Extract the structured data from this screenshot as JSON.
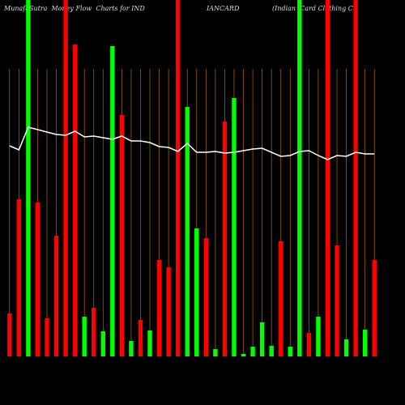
{
  "chart_data": {
    "type": "bar",
    "title": "MunafaSutra  Money Flow  Charts for IND                              IANCARD                (Indian  Card Clothing C",
    "categories": [
      null,
      null,
      null,
      null,
      null,
      null,
      null,
      null,
      null,
      null,
      null,
      null,
      null,
      null,
      null,
      null,
      null,
      null,
      null,
      null,
      null,
      null,
      null,
      null,
      null,
      null,
      null,
      null,
      null,
      null,
      null,
      null,
      null,
      null,
      null,
      null,
      null,
      null,
      null,
      null
    ],
    "values": [
      53,
      194,
      440,
      190,
      47,
      149,
      440,
      385,
      49,
      60,
      31,
      383,
      298,
      19,
      45,
      32,
      119,
      110,
      440,
      308,
      158,
      146,
      9,
      290,
      319,
      3,
      12,
      42,
      13,
      142,
      12,
      440,
      29,
      49,
      440,
      137,
      21,
      440,
      33,
      119
    ],
    "colors": [
      "#ff0000",
      "#ff0000",
      "#00ff00",
      "#ff0000",
      "#ff0000",
      "#ff0000",
      "#ff0000",
      "#ff0000",
      "#00ff00",
      "#ff0000",
      "#00ff00",
      "#00ff00",
      "#ff0000",
      "#00ff00",
      "#ff0000",
      "#00ff00",
      "#ff0000",
      "#ff0000",
      "#ff0000",
      "#00ff00",
      "#00ff00",
      "#ff0000",
      "#00ff00",
      "#ff0000",
      "#00ff00",
      "#00ff00",
      "#00ff00",
      "#00ff00",
      "#00ff00",
      "#ff0000",
      "#00ff00",
      "#00ff00",
      "#ff0000",
      "#00ff00",
      "#ff0000",
      "#ff0000",
      "#00ff00",
      "#ff0000",
      "#00ff00",
      "#ff0000"
    ],
    "line": [
      260,
      255,
      283,
      280,
      277,
      274,
      273,
      278,
      271,
      272,
      270,
      268,
      272,
      266,
      266,
      264,
      259,
      258,
      253,
      263,
      252,
      252,
      253,
      251,
      252,
      254,
      256,
      257,
      252,
      247,
      248,
      253,
      254,
      248,
      243,
      248,
      247,
      252,
      250,
      250
    ],
    "line_color": "#ffffff",
    "ylim": [
      0,
      440
    ]
  }
}
